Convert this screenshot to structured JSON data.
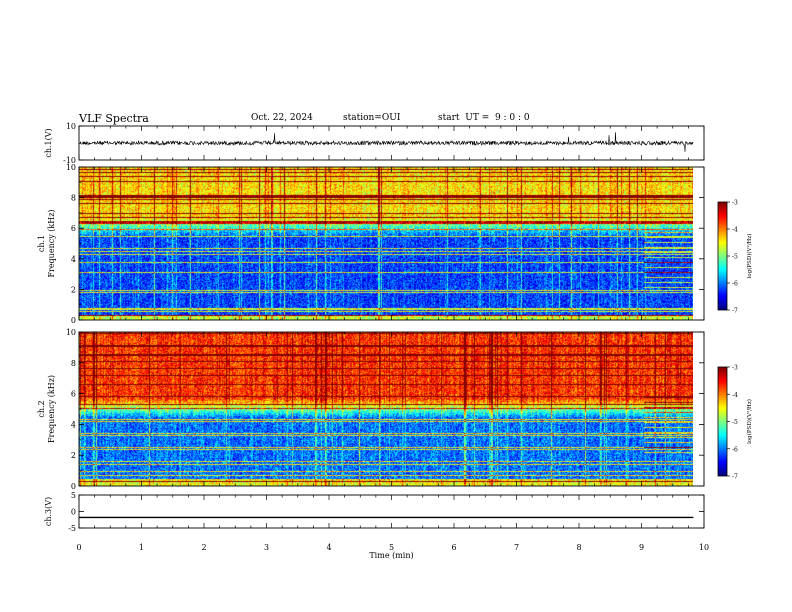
{
  "header": {
    "title": "VLF Spectra",
    "date": "Oct. 22, 2024",
    "station": "station=OUI",
    "start": "start  UT =  9 : 0 : 0"
  },
  "chart_data": {
    "type": "heatmap",
    "x_axis": {
      "label": "Time (min)",
      "range": [
        0,
        10
      ],
      "ticks": [
        0,
        1,
        2,
        3,
        4,
        5,
        6,
        7,
        8,
        9,
        10
      ],
      "data_end": 9.83
    },
    "panels": [
      {
        "id": "ch1-waveform",
        "type": "line",
        "ylabel": "ch.1(V)",
        "ylim": [
          -10,
          10
        ],
        "yticks": [
          10,
          -10
        ],
        "trace_level": 0,
        "trace_color": "#000000"
      },
      {
        "id": "ch1-spectrogram",
        "type": "heatmap",
        "ylabel": "ch.1\nFrequency (kHz)",
        "ylim": [
          0,
          10
        ],
        "yticks": [
          0,
          2,
          4,
          6,
          8,
          10
        ],
        "colorbar": {
          "label": "log(PSD)(V²/Hz)",
          "range": [
            -7,
            -3
          ],
          "ticks": [
            -3,
            -4,
            -5,
            -6,
            -7
          ]
        },
        "description_levels": {
          "upper_band_kHz": [
            5.5,
            10
          ],
          "upper_band_level": -4.6,
          "lower_band_level": -6.4
        }
      },
      {
        "id": "ch2-spectrogram",
        "type": "heatmap",
        "ylabel": "ch.2\nFrequency (kHz)",
        "ylim": [
          0,
          10
        ],
        "yticks": [
          0,
          2,
          4,
          6,
          8,
          10
        ],
        "colorbar": {
          "label": "log(PSD)(V²/Hz)",
          "range": [
            -7,
            -3
          ],
          "ticks": [
            -3,
            -4,
            -5,
            -6,
            -7
          ]
        },
        "description_levels": {
          "upper_band_kHz": [
            4.5,
            10
          ],
          "upper_band_level": -3.9,
          "lower_band_level": -6.2
        }
      },
      {
        "id": "ch3-waveform",
        "type": "line",
        "ylabel": "ch.3(V)",
        "ylim": [
          -5,
          5
        ],
        "yticks": [
          5,
          0,
          -5
        ],
        "trace_level": -1.8,
        "trace_color": "#000000"
      }
    ],
    "colormap": [
      "#00007f",
      "#0000ff",
      "#007fff",
      "#00ffff",
      "#7fff7f",
      "#ffff00",
      "#ff7f00",
      "#ff0000",
      "#7f0000"
    ]
  }
}
